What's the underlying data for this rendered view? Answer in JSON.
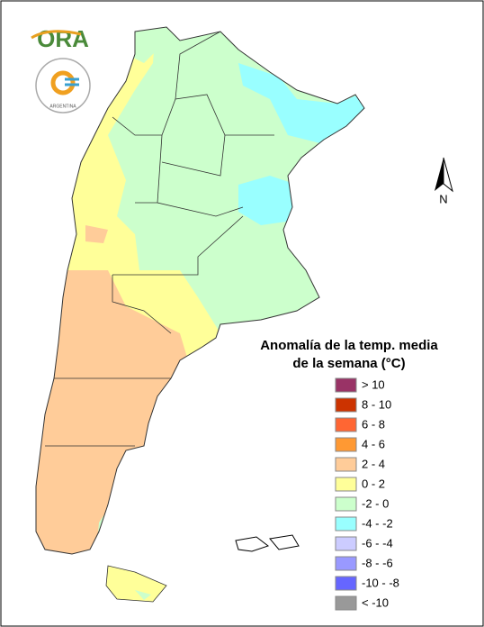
{
  "logo": {
    "title": "ORA",
    "subtitle": "ARGENTINA"
  },
  "compass": "N",
  "legend": {
    "title": [
      "Anomalía de la temp. media",
      "de la semana (°C)"
    ],
    "items": [
      {
        "label": "> 10",
        "color": "#993366"
      },
      {
        "label": "8 - 10",
        "color": "#cc3300"
      },
      {
        "label": "6 - 8",
        "color": "#ff6633"
      },
      {
        "label": "4 - 6",
        "color": "#ff9933"
      },
      {
        "label": "2 - 4",
        "color": "#ffcc99"
      },
      {
        "label": "0 - 2",
        "color": "#ffff99"
      },
      {
        "label": "-2 - 0",
        "color": "#ccffcc"
      },
      {
        "label": "-4 - -2",
        "color": "#99ffff"
      },
      {
        "label": "-6 - -4",
        "color": "#ccccff"
      },
      {
        "label": "-8 - -6",
        "color": "#9999ff"
      },
      {
        "label": "-10 - -8",
        "color": "#6666ff"
      },
      {
        "label": "< -10",
        "color": "#999999"
      }
    ]
  }
}
